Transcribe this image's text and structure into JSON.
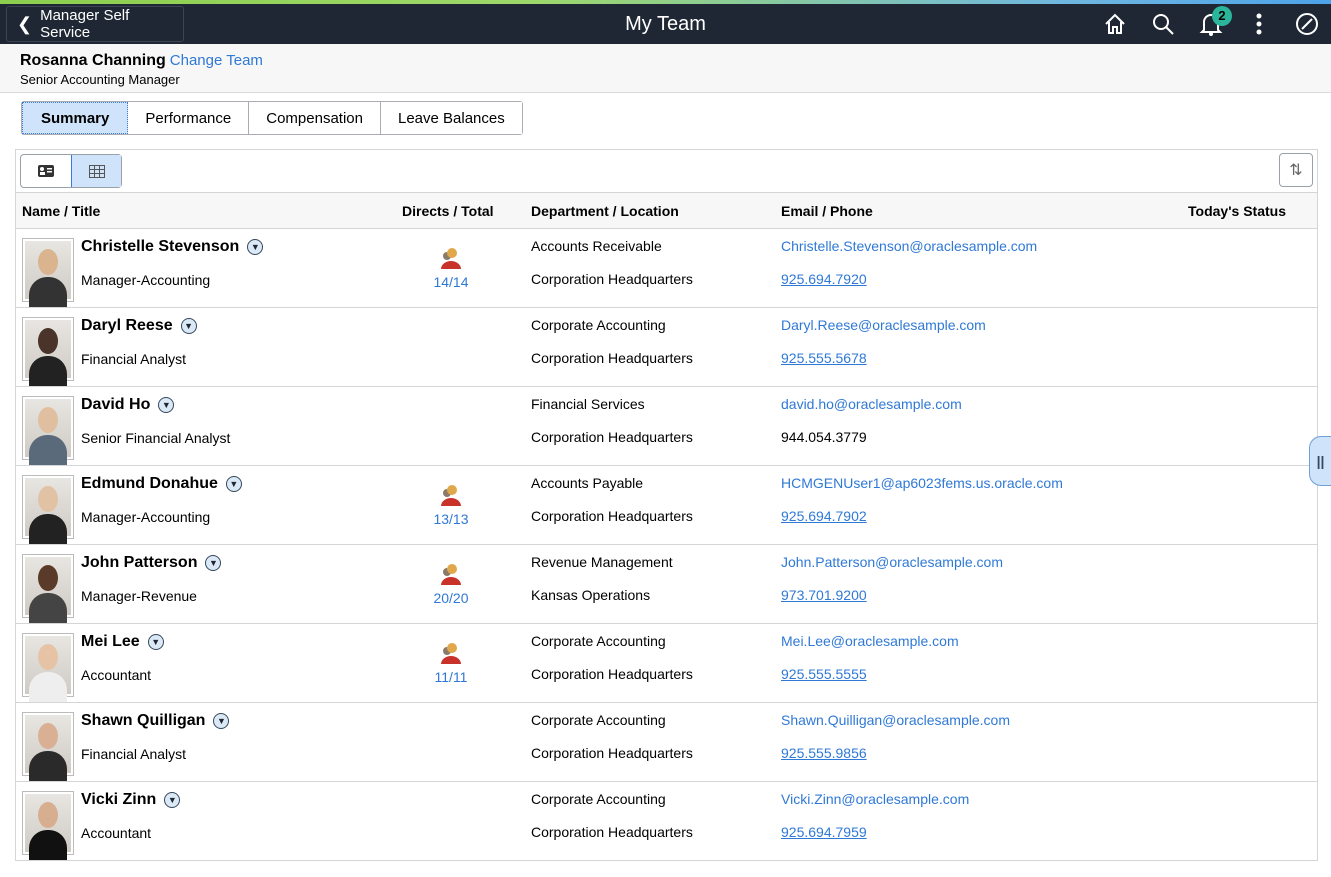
{
  "banner": {
    "back_label": "Manager Self Service",
    "title": "My Team",
    "notification_count": "2",
    "icons": [
      "home-icon",
      "search-icon",
      "bell-icon",
      "more-vertical-icon",
      "compass-icon"
    ]
  },
  "context": {
    "manager_name": "Rosanna Channing",
    "change_team": "Change Team",
    "manager_title": "Senior Accounting Manager"
  },
  "tabs": [
    "Summary",
    "Performance",
    "Compensation",
    "Leave Balances"
  ],
  "active_tab": "Summary",
  "headers": {
    "name": "Name / Title",
    "directs": "Directs / Total",
    "dept": "Department / Location",
    "email": "Email / Phone",
    "status": "Today's Status"
  },
  "colors": {
    "link": "#2f79d6",
    "banner": "#1e2733",
    "selected": "#cfe4fb"
  },
  "rows": [
    {
      "name": "Christelle Stevenson",
      "title": "Manager-Accounting",
      "directs": "14/14",
      "dept": "Accounts Receivable",
      "location": "Corporation Headquarters",
      "email": "Christelle.Stevenson@oraclesample.com",
      "phone": "925.694.7920",
      "phone_link": true
    },
    {
      "name": "Daryl Reese",
      "title": "Financial Analyst",
      "directs": "",
      "dept": "Corporate Accounting",
      "location": "Corporation Headquarters",
      "email": "Daryl.Reese@oraclesample.com",
      "phone": "925.555.5678",
      "phone_link": true
    },
    {
      "name": "David Ho",
      "title": "Senior Financial Analyst",
      "directs": "",
      "dept": "Financial Services",
      "location": "Corporation Headquarters",
      "email": "david.ho@oraclesample.com",
      "phone": "944.054.3779",
      "phone_link": false
    },
    {
      "name": "Edmund Donahue",
      "title": "Manager-Accounting",
      "directs": "13/13",
      "dept": "Accounts Payable",
      "location": "Corporation Headquarters",
      "email": "HCMGENUser1@ap6023fems.us.oracle.com",
      "phone": "925.694.7902",
      "phone_link": true
    },
    {
      "name": "John Patterson",
      "title": "Manager-Revenue",
      "directs": "20/20",
      "dept": "Revenue Management",
      "location": "Kansas Operations",
      "email": "John.Patterson@oraclesample.com",
      "phone": "973.701.9200",
      "phone_link": true
    },
    {
      "name": "Mei Lee",
      "title": "Accountant",
      "directs": "11/11",
      "dept": "Corporate Accounting",
      "location": "Corporation Headquarters",
      "email": "Mei.Lee@oraclesample.com",
      "phone": "925.555.5555",
      "phone_link": true
    },
    {
      "name": "Shawn Quilligan",
      "title": "Financial Analyst",
      "directs": "",
      "dept": "Corporate Accounting",
      "location": "Corporation Headquarters",
      "email": "Shawn.Quilligan@oraclesample.com",
      "phone": "925.555.9856",
      "phone_link": true
    },
    {
      "name": "Vicki Zinn",
      "title": "Accountant",
      "directs": "",
      "dept": "Corporate Accounting",
      "location": "Corporation Headquarters",
      "email": "Vicki.Zinn@oraclesample.com",
      "phone": "925.694.7959",
      "phone_link": true
    }
  ]
}
